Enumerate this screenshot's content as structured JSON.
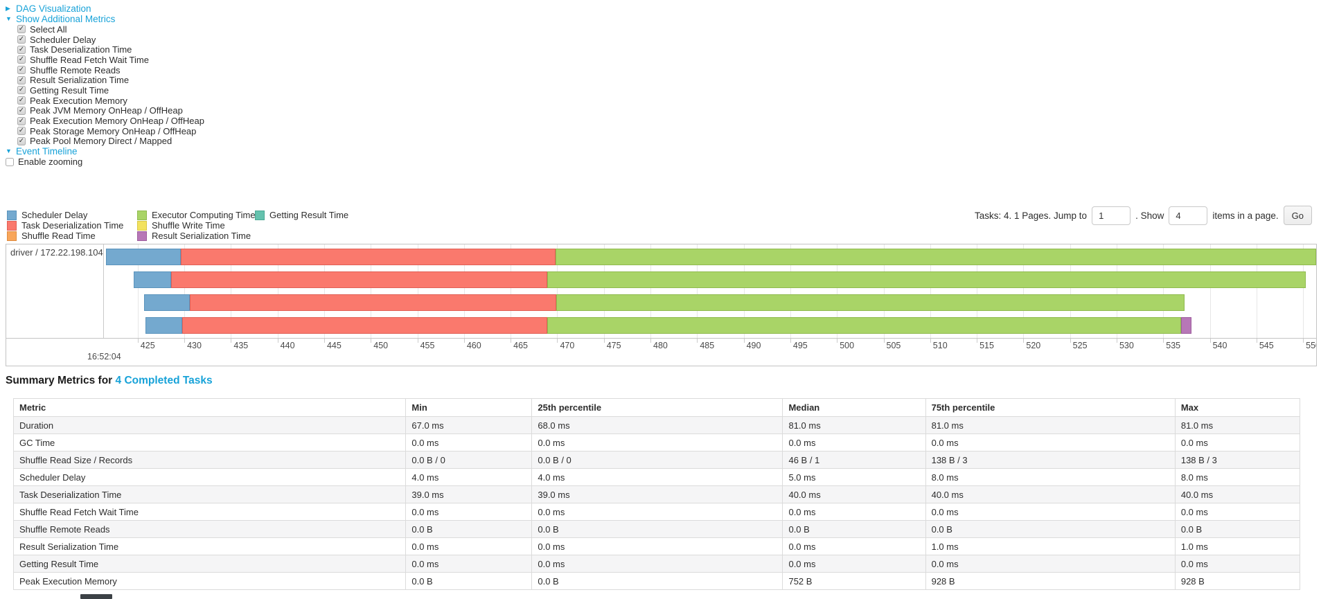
{
  "controls": {
    "dag_toggle": "DAG Visualization",
    "metrics_toggle": "Show Additional Metrics",
    "timeline_toggle": "Event Timeline",
    "enable_zooming_label": "Enable zooming",
    "metric_checkboxes": [
      {
        "label": "Select All",
        "checked": true
      },
      {
        "label": "Scheduler Delay",
        "checked": true
      },
      {
        "label": "Task Deserialization Time",
        "checked": true
      },
      {
        "label": "Shuffle Read Fetch Wait Time",
        "checked": true
      },
      {
        "label": "Shuffle Remote Reads",
        "checked": true
      },
      {
        "label": "Result Serialization Time",
        "checked": true
      },
      {
        "label": "Getting Result Time",
        "checked": true
      },
      {
        "label": "Peak Execution Memory",
        "checked": true
      },
      {
        "label": "Peak JVM Memory OnHeap / OffHeap",
        "checked": true
      },
      {
        "label": "Peak Execution Memory OnHeap / OffHeap",
        "checked": true
      },
      {
        "label": "Peak Storage Memory OnHeap / OffHeap",
        "checked": true
      },
      {
        "label": "Peak Pool Memory Direct / Mapped",
        "checked": true
      }
    ]
  },
  "pagination": {
    "prefix": "Tasks: 4. 1 Pages. Jump to",
    "jump_value": "1",
    "mid": ". Show",
    "show_value": "4",
    "suffix": "items in a page.",
    "go_label": "Go"
  },
  "colors": {
    "link": "#17a2d8",
    "scheduler_delay": {
      "fill": "#74a9cf",
      "border": "#5a93bc"
    },
    "task_deserialization": {
      "fill": "#fa796d",
      "border": "#e05f55"
    },
    "shuffle_read": {
      "fill": "#f9a65a",
      "border": "#df8c40"
    },
    "executor_computing": {
      "fill": "#a9d467",
      "border": "#8fba4e"
    },
    "shuffle_write": {
      "fill": "#f2e25e",
      "border": "#d8c845"
    },
    "result_serialization": {
      "fill": "#b777b7",
      "border": "#9d5d9d"
    },
    "getting_result": {
      "fill": "#65c2ae",
      "border": "#4ba894"
    }
  },
  "legend": {
    "columns": [
      [
        {
          "key": "scheduler_delay",
          "label": "Scheduler Delay"
        },
        {
          "key": "task_deserialization",
          "label": "Task Deserialization Time"
        },
        {
          "key": "shuffle_read",
          "label": "Shuffle Read Time"
        }
      ],
      [
        {
          "key": "executor_computing",
          "label": "Executor Computing Time"
        },
        {
          "key": "shuffle_write",
          "label": "Shuffle Write Time"
        },
        {
          "key": "result_serialization",
          "label": "Result Serialization Time"
        }
      ],
      [
        {
          "key": "getting_result",
          "label": "Getting Result Time"
        }
      ]
    ]
  },
  "timeline": {
    "executor_label": "driver / 172.22.198.104",
    "axis": {
      "domain_start": 421.3,
      "domain_end": 551.4,
      "tick_start": 425,
      "tick_end": 550,
      "tick_step": 5,
      "major_label": "16:52:04"
    },
    "tasks": [
      {
        "segments": [
          {
            "metric": "scheduler_delay",
            "start": 421.6,
            "end": 429.6
          },
          {
            "metric": "task_deserialization",
            "start": 429.6,
            "end": 469.8
          },
          {
            "metric": "executor_computing",
            "start": 469.8,
            "end": 551.4
          }
        ]
      },
      {
        "segments": [
          {
            "metric": "scheduler_delay",
            "start": 424.6,
            "end": 428.6
          },
          {
            "metric": "task_deserialization",
            "start": 428.6,
            "end": 468.9
          },
          {
            "metric": "executor_computing",
            "start": 468.9,
            "end": 550.3
          }
        ]
      },
      {
        "segments": [
          {
            "metric": "scheduler_delay",
            "start": 425.7,
            "end": 430.6
          },
          {
            "metric": "task_deserialization",
            "start": 430.6,
            "end": 469.9
          },
          {
            "metric": "executor_computing",
            "start": 469.9,
            "end": 537.3
          }
        ]
      },
      {
        "segments": [
          {
            "metric": "scheduler_delay",
            "start": 425.8,
            "end": 429.8
          },
          {
            "metric": "task_deserialization",
            "start": 429.8,
            "end": 468.9
          },
          {
            "metric": "executor_computing",
            "start": 468.9,
            "end": 536.9
          },
          {
            "metric": "result_serialization",
            "start": 536.9,
            "end": 538.0
          }
        ]
      }
    ]
  },
  "summary": {
    "title": "Summary Metrics for",
    "tasks_link": "4 Completed Tasks",
    "columns": [
      "Metric",
      "Min",
      "25th percentile",
      "Median",
      "75th percentile",
      "Max"
    ],
    "col_widths_pct": [
      30.5,
      9.8,
      19.5,
      11.1,
      19.4,
      9.7
    ],
    "rows": [
      [
        "Duration",
        "67.0 ms",
        "68.0 ms",
        "81.0 ms",
        "81.0 ms",
        "81.0 ms"
      ],
      [
        "GC Time",
        "0.0 ms",
        "0.0 ms",
        "0.0 ms",
        "0.0 ms",
        "0.0 ms"
      ],
      [
        "Shuffle Read Size / Records",
        "0.0 B / 0",
        "0.0 B / 0",
        "46 B / 1",
        "138 B / 3",
        "138 B / 3"
      ],
      [
        "Scheduler Delay",
        "4.0 ms",
        "4.0 ms",
        "5.0 ms",
        "8.0 ms",
        "8.0 ms"
      ],
      [
        "Task Deserialization Time",
        "39.0 ms",
        "39.0 ms",
        "40.0 ms",
        "40.0 ms",
        "40.0 ms"
      ],
      [
        "Shuffle Read Fetch Wait Time",
        "0.0 ms",
        "0.0 ms",
        "0.0 ms",
        "0.0 ms",
        "0.0 ms"
      ],
      [
        "Shuffle Remote Reads",
        "0.0 B",
        "0.0 B",
        "0.0 B",
        "0.0 B",
        "0.0 B"
      ],
      [
        "Result Serialization Time",
        "0.0 ms",
        "0.0 ms",
        "0.0 ms",
        "1.0 ms",
        "1.0 ms"
      ],
      [
        "Getting Result Time",
        "0.0 ms",
        "0.0 ms",
        "0.0 ms",
        "0.0 ms",
        "0.0 ms"
      ],
      [
        "Peak Execution Memory",
        "0.0 B",
        "0.0 B",
        "752 B",
        "928 B",
        "928 B"
      ]
    ]
  }
}
